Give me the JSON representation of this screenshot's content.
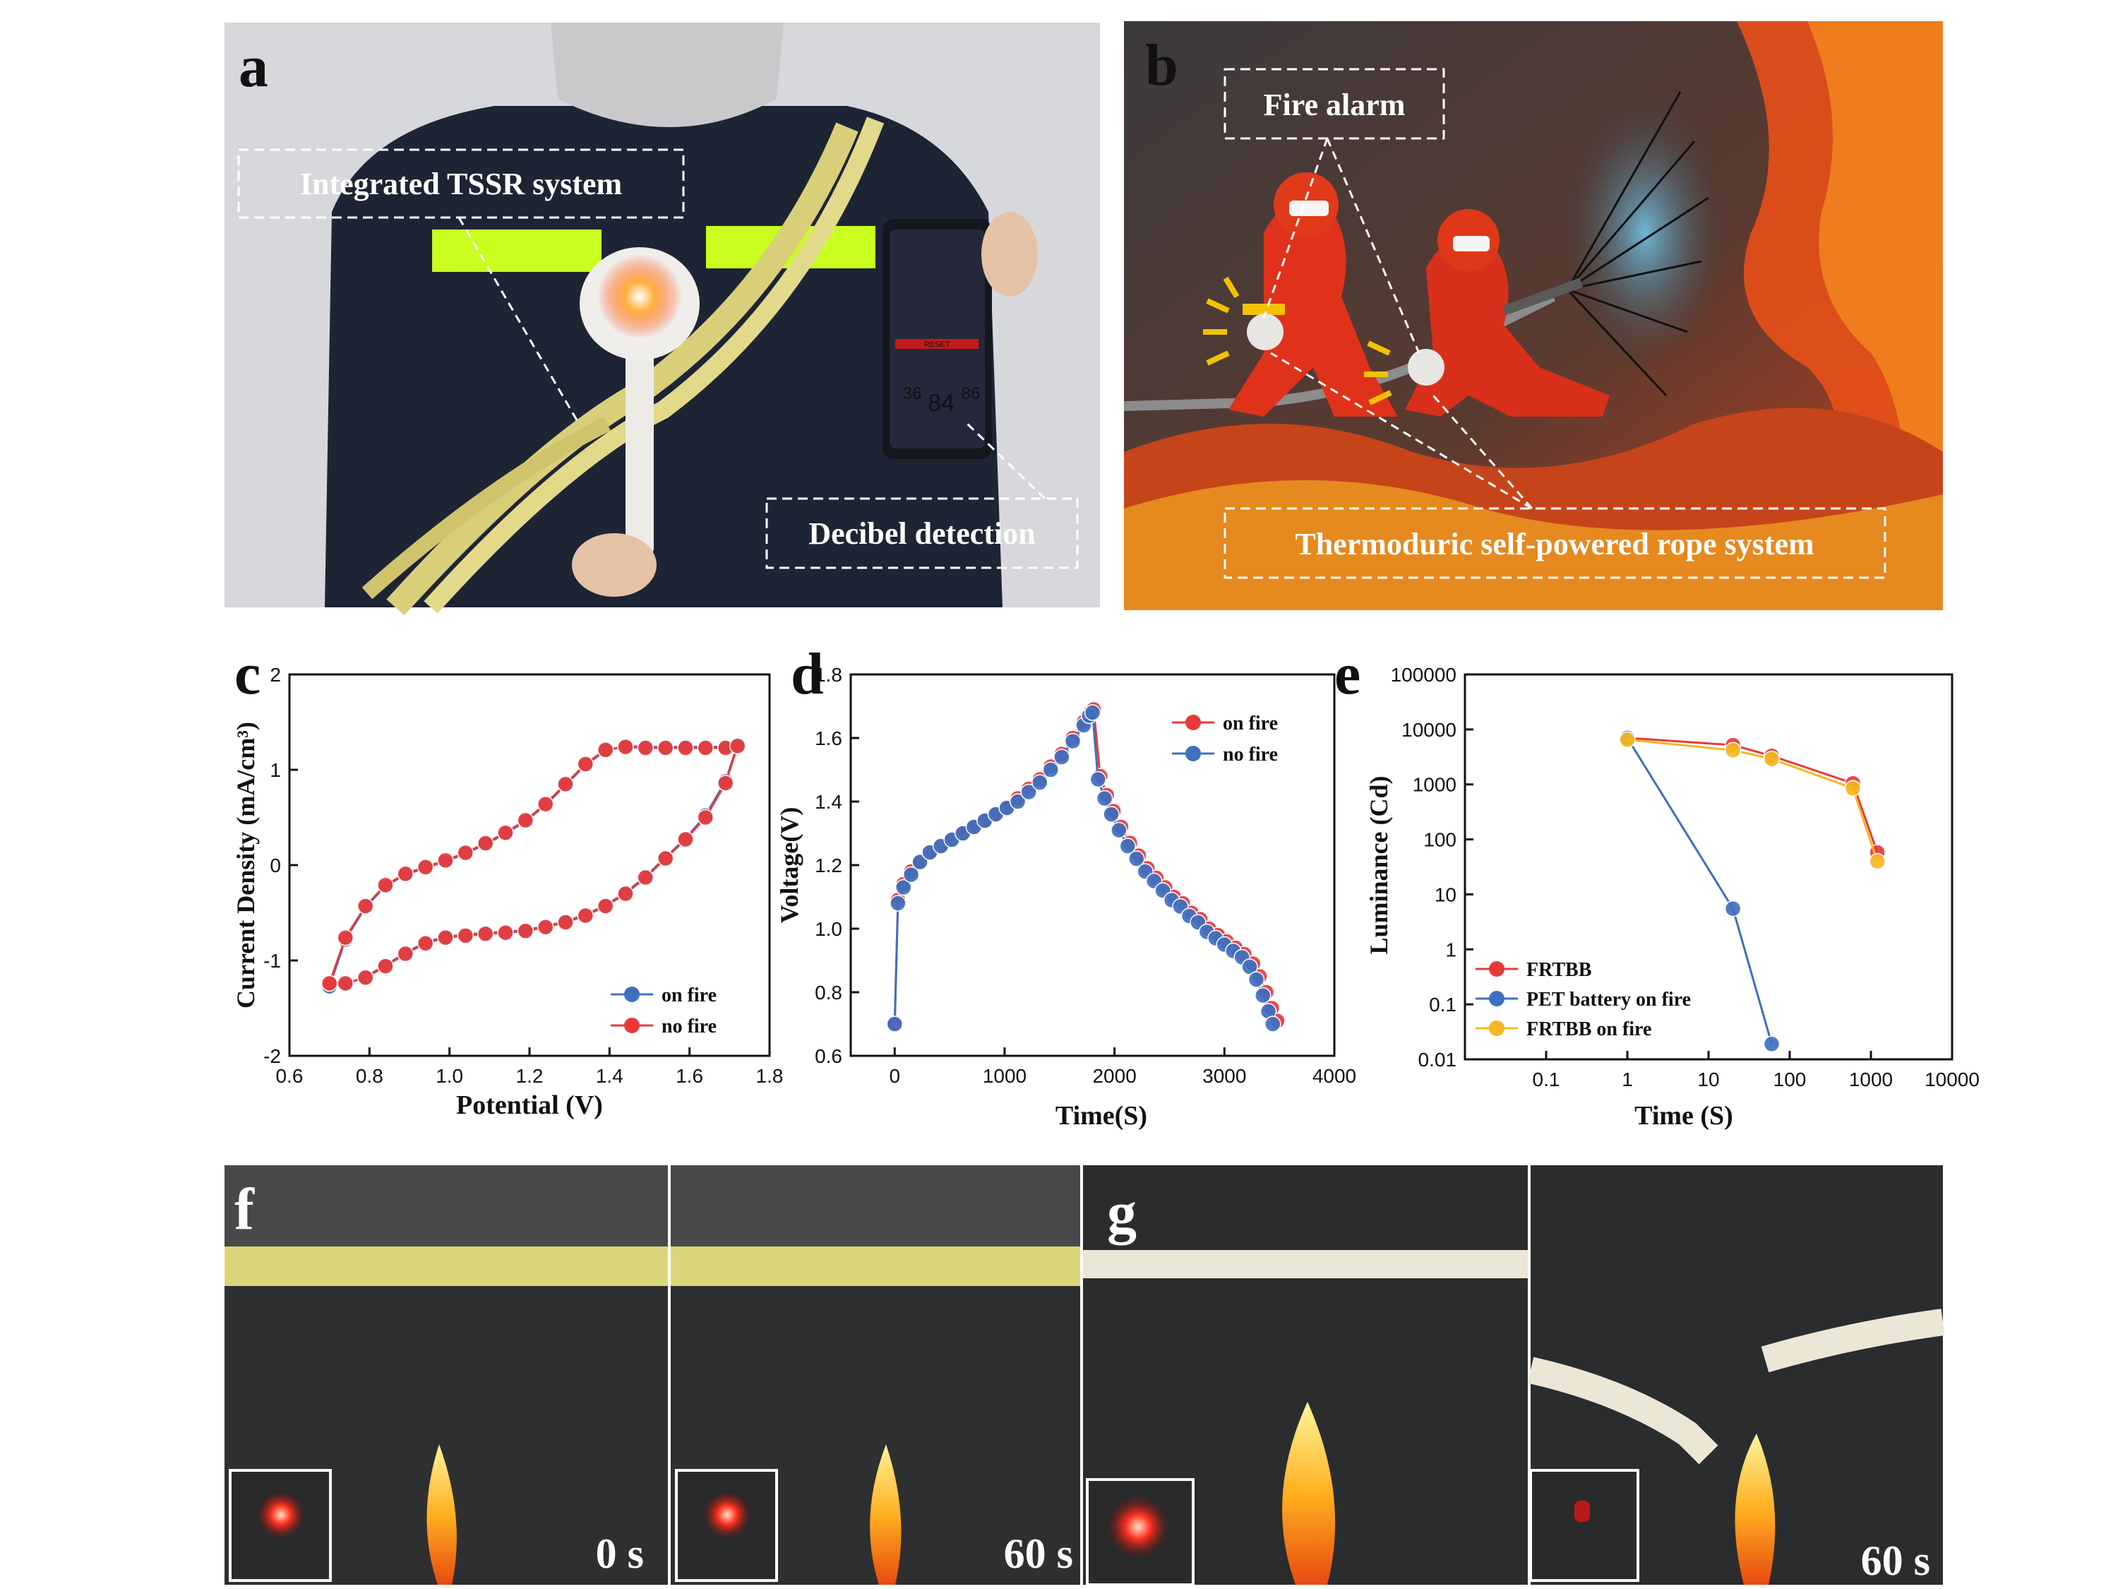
{
  "panels": {
    "a": {
      "letter": "a",
      "labels": [
        "Integrated TSSR system",
        "Decibel detection"
      ],
      "phone": {
        "reading": "84",
        "min": "36",
        "max": "86",
        "button": "RESET"
      }
    },
    "b": {
      "letter": "b",
      "labels": [
        "Fire alarm",
        "Thermoduric  self-powered rope system"
      ]
    },
    "f": {
      "letter": "f",
      "times": [
        "0 s",
        "60 s"
      ]
    },
    "g": {
      "letter": "g",
      "times": [
        "60 s"
      ]
    }
  },
  "colors": {
    "red": "#e8393a",
    "blue": "#3f6fbf",
    "yellow": "#f5b820"
  },
  "chart_data": [
    {
      "id": "c",
      "letter": "c",
      "type": "line",
      "xlabel": "Potential (V)",
      "ylabel": "Current Density (mA/cm³)",
      "xlim": [
        0.6,
        1.8
      ],
      "ylim": [
        -2,
        2
      ],
      "xticks": [
        "0.6",
        "0.8",
        "1.0",
        "1.2",
        "1.4",
        "1.6",
        "1.8"
      ],
      "yticks": [
        "-2",
        "-1",
        "0",
        "1",
        "2"
      ],
      "legend": "bottom-right",
      "series": [
        {
          "name": "on fire",
          "color": "#3f6fbf",
          "x": [
            0.7,
            0.74,
            0.79,
            0.84,
            0.89,
            0.94,
            0.99,
            1.04,
            1.09,
            1.14,
            1.19,
            1.24,
            1.29,
            1.34,
            1.39,
            1.44,
            1.49,
            1.54,
            1.59,
            1.64,
            1.69,
            1.72,
            1.69,
            1.64,
            1.59,
            1.54,
            1.49,
            1.44,
            1.39,
            1.34,
            1.29,
            1.24,
            1.19,
            1.14,
            1.09,
            1.04,
            0.99,
            0.94,
            0.89,
            0.84,
            0.79,
            0.74,
            0.7
          ],
          "y": [
            -1.27,
            -0.78,
            -0.44,
            -0.22,
            -0.1,
            -0.03,
            0.04,
            0.12,
            0.22,
            0.33,
            0.46,
            0.63,
            0.84,
            1.05,
            1.2,
            1.25,
            1.24,
            1.24,
            1.24,
            1.24,
            1.24,
            1.26,
            0.88,
            0.52,
            0.28,
            0.08,
            -0.12,
            -0.29,
            -0.42,
            -0.52,
            -0.59,
            -0.64,
            -0.68,
            -0.7,
            -0.71,
            -0.73,
            -0.75,
            -0.81,
            -0.92,
            -1.05,
            -1.17,
            -1.25,
            -1.27
          ]
        },
        {
          "name": "no fire",
          "color": "#e8393a",
          "x": [
            0.7,
            0.74,
            0.79,
            0.84,
            0.89,
            0.94,
            0.99,
            1.04,
            1.09,
            1.14,
            1.19,
            1.24,
            1.29,
            1.34,
            1.39,
            1.44,
            1.49,
            1.54,
            1.59,
            1.64,
            1.69,
            1.72,
            1.69,
            1.64,
            1.59,
            1.54,
            1.49,
            1.44,
            1.39,
            1.34,
            1.29,
            1.24,
            1.19,
            1.14,
            1.09,
            1.04,
            0.99,
            0.94,
            0.89,
            0.84,
            0.79,
            0.74,
            0.7
          ],
          "y": [
            -1.24,
            -0.76,
            -0.43,
            -0.21,
            -0.09,
            -0.02,
            0.05,
            0.13,
            0.23,
            0.34,
            0.47,
            0.64,
            0.85,
            1.06,
            1.21,
            1.24,
            1.23,
            1.23,
            1.23,
            1.23,
            1.23,
            1.25,
            0.86,
            0.5,
            0.27,
            0.07,
            -0.13,
            -0.3,
            -0.43,
            -0.53,
            -0.6,
            -0.65,
            -0.69,
            -0.71,
            -0.72,
            -0.74,
            -0.76,
            -0.82,
            -0.93,
            -1.06,
            -1.18,
            -1.24,
            -1.24
          ]
        }
      ]
    },
    {
      "id": "d",
      "letter": "d",
      "type": "line",
      "xlabel": "Time(S)",
      "ylabel": "Voltage(V)",
      "xlim": [
        -400,
        4000
      ],
      "ylim": [
        0.6,
        1.8
      ],
      "xticks": [
        "0",
        "1000",
        "2000",
        "3000",
        "4000"
      ],
      "yticks": [
        "0.6",
        "0.8",
        "1.0",
        "1.2",
        "1.4",
        "1.6",
        "1.8"
      ],
      "legend": "top-right",
      "series": [
        {
          "name": "on fire",
          "color": "#e8393a",
          "x": [
            0,
            30,
            80,
            150,
            230,
            320,
            420,
            520,
            620,
            720,
            820,
            920,
            1020,
            1120,
            1220,
            1320,
            1420,
            1520,
            1620,
            1720,
            1780,
            1810,
            1870,
            1930,
            1990,
            2060,
            2140,
            2220,
            2300,
            2380,
            2460,
            2540,
            2620,
            2700,
            2780,
            2860,
            2940,
            3020,
            3100,
            3180,
            3260,
            3320,
            3380,
            3430,
            3480
          ],
          "y": [
            0.7,
            1.09,
            1.14,
            1.18,
            1.21,
            1.24,
            1.26,
            1.28,
            1.3,
            1.32,
            1.34,
            1.36,
            1.38,
            1.41,
            1.44,
            1.47,
            1.51,
            1.55,
            1.6,
            1.65,
            1.68,
            1.69,
            1.48,
            1.42,
            1.37,
            1.32,
            1.27,
            1.23,
            1.19,
            1.16,
            1.13,
            1.1,
            1.08,
            1.05,
            1.03,
            1.0,
            0.98,
            0.96,
            0.94,
            0.92,
            0.89,
            0.85,
            0.8,
            0.75,
            0.71
          ]
        },
        {
          "name": "no fire",
          "color": "#3f6fbf",
          "x": [
            0,
            30,
            80,
            150,
            230,
            320,
            420,
            520,
            620,
            720,
            820,
            920,
            1020,
            1120,
            1220,
            1320,
            1420,
            1520,
            1620,
            1720,
            1770,
            1800,
            1850,
            1910,
            1970,
            2040,
            2120,
            2200,
            2280,
            2360,
            2440,
            2520,
            2600,
            2680,
            2760,
            2840,
            2920,
            3000,
            3080,
            3160,
            3230,
            3290,
            3350,
            3400,
            3440
          ],
          "y": [
            0.7,
            1.08,
            1.13,
            1.17,
            1.21,
            1.24,
            1.26,
            1.28,
            1.3,
            1.32,
            1.34,
            1.36,
            1.38,
            1.4,
            1.43,
            1.46,
            1.5,
            1.54,
            1.59,
            1.64,
            1.67,
            1.68,
            1.47,
            1.41,
            1.36,
            1.31,
            1.26,
            1.22,
            1.18,
            1.15,
            1.12,
            1.09,
            1.07,
            1.04,
            1.02,
            0.99,
            0.97,
            0.95,
            0.93,
            0.91,
            0.88,
            0.84,
            0.79,
            0.74,
            0.7
          ]
        }
      ]
    },
    {
      "id": "e",
      "letter": "e",
      "type": "line",
      "xlabel": "Time (S)",
      "ylabel": "Luminance (Cd)",
      "xscale": "log",
      "yscale": "log",
      "xlim": [
        0.01,
        10000
      ],
      "ylim": [
        0.01,
        100000
      ],
      "xticks": [
        "0.1",
        "1",
        "10",
        "100",
        "1000",
        "10000"
      ],
      "yticks": [
        "0.01",
        "0.1",
        "1",
        "10",
        "100",
        "1000",
        "10000",
        "100000"
      ],
      "legend": "bottom-left",
      "series": [
        {
          "name": "FRTBB",
          "color": "#e8393a",
          "x": [
            1,
            20,
            60,
            600,
            1200
          ],
          "y": [
            7000,
            5200,
            3300,
            1050,
            58
          ]
        },
        {
          "name": "PET battery on fire",
          "color": "#3f6fbf",
          "x": [
            1,
            20,
            60
          ],
          "y": [
            7000,
            5.5,
            0.019
          ]
        },
        {
          "name": "FRTBB  on fire",
          "color": "#f5b820",
          "x": [
            1,
            20,
            60,
            600,
            1200
          ],
          "y": [
            6500,
            4200,
            2900,
            850,
            40
          ]
        }
      ]
    }
  ]
}
